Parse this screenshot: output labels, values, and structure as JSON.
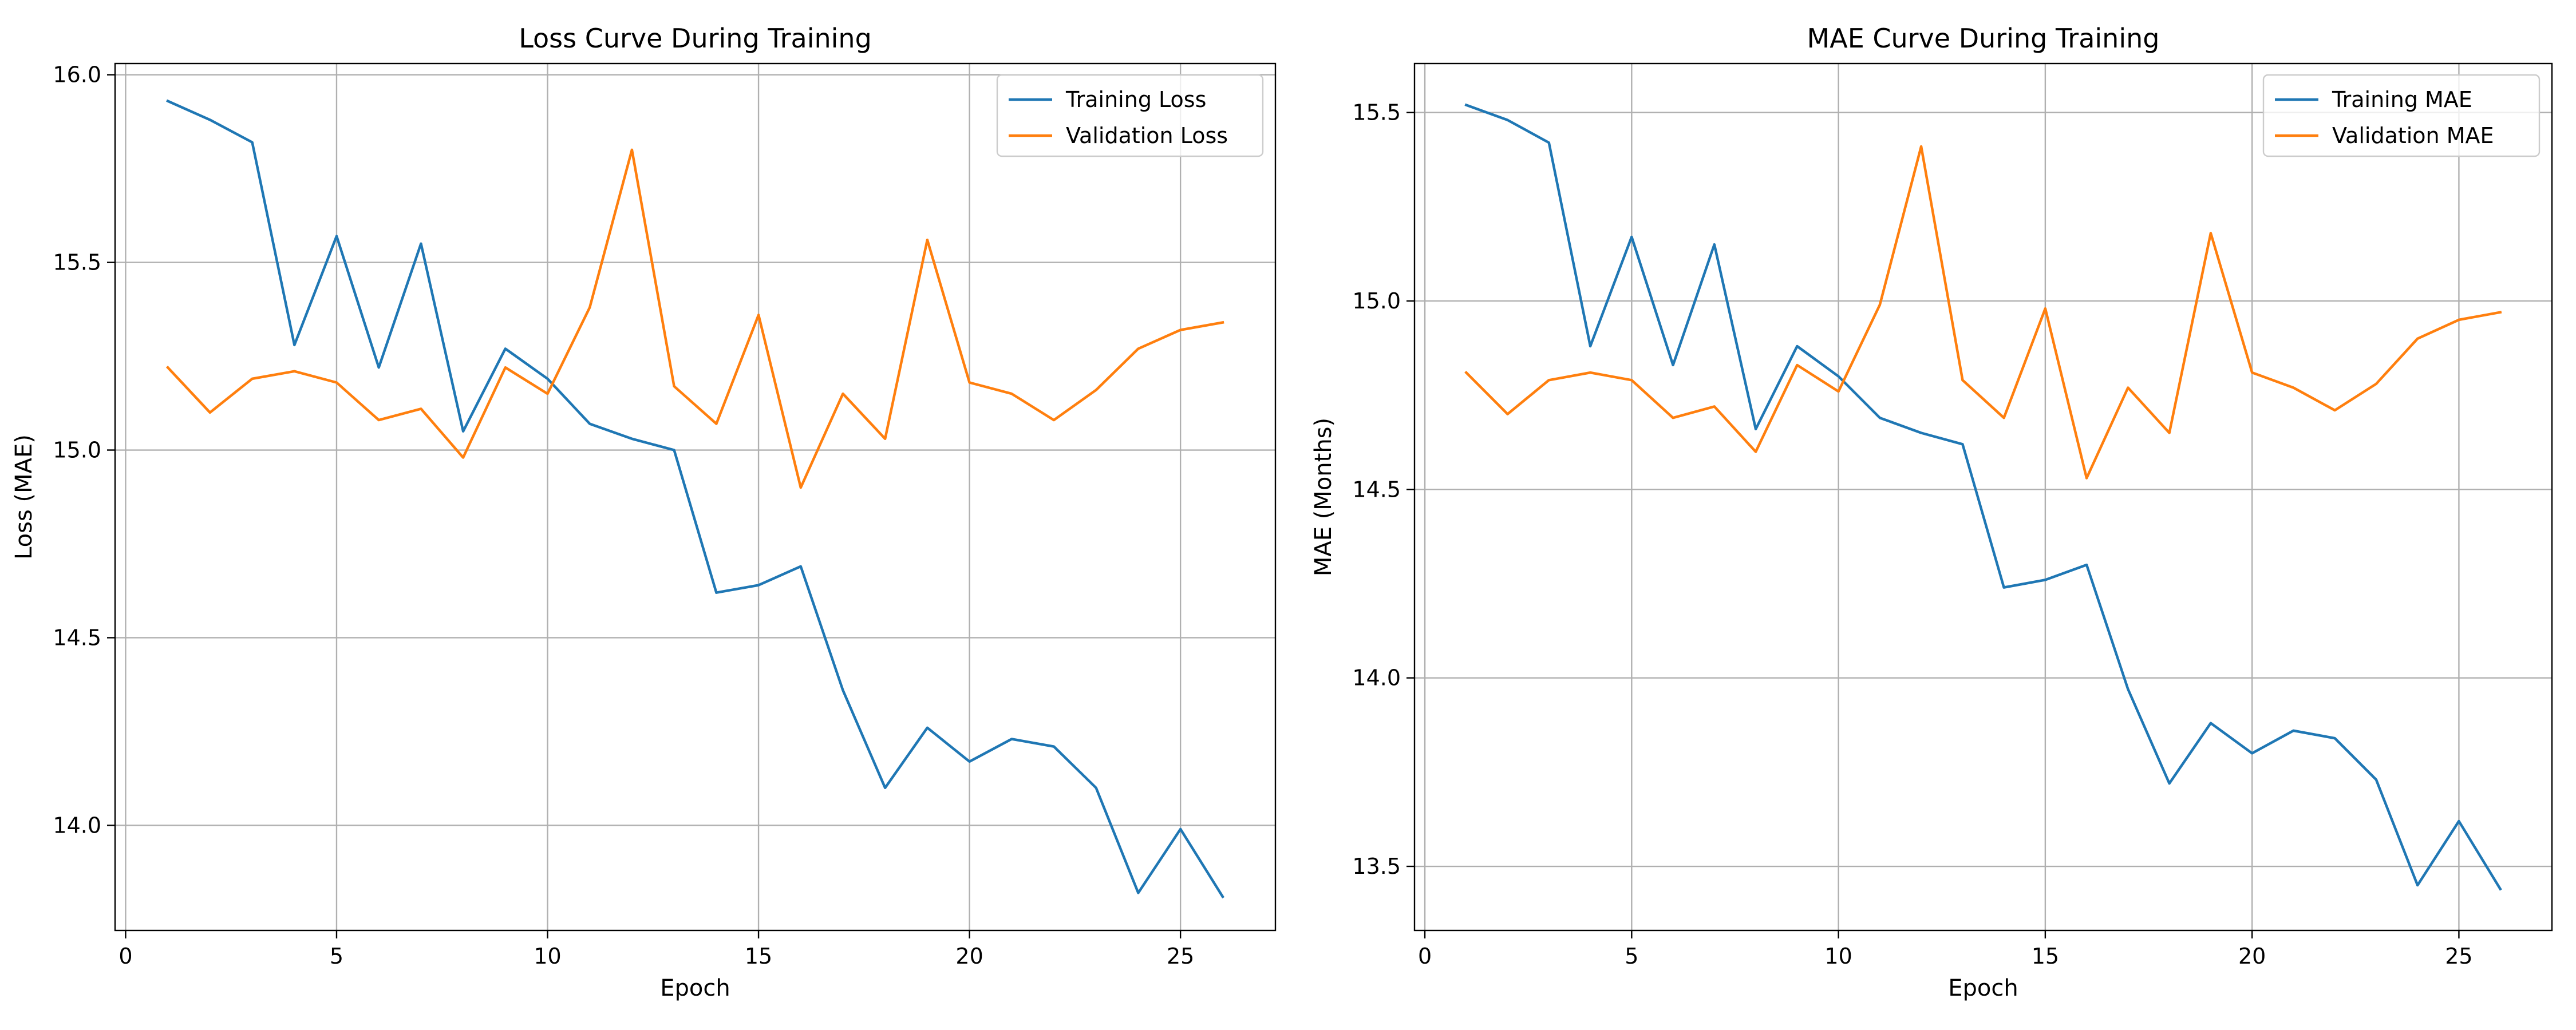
{
  "figure": {
    "background": "#ffffff"
  },
  "chart_data": [
    {
      "type": "line",
      "title": "Loss Curve During Training",
      "xlabel": "Epoch",
      "ylabel": "Loss (MAE)",
      "xlim": [
        -0.25,
        27.25
      ],
      "ylim": [
        13.72,
        16.03
      ],
      "xticks": [
        0,
        5,
        10,
        15,
        20,
        25
      ],
      "yticks": [
        14.0,
        14.5,
        15.0,
        15.5,
        16.0
      ],
      "grid": true,
      "legend_position": "top-right",
      "x": [
        1,
        2,
        3,
        4,
        5,
        6,
        7,
        8,
        9,
        10,
        11,
        12,
        13,
        14,
        15,
        16,
        17,
        18,
        19,
        20,
        21,
        22,
        23,
        24,
        25,
        26
      ],
      "series": [
        {
          "name": "Training Loss",
          "color": "#1f77b4",
          "values": [
            15.93,
            15.88,
            15.82,
            15.28,
            15.57,
            15.22,
            15.55,
            15.05,
            15.27,
            15.19,
            15.07,
            15.03,
            15.0,
            14.62,
            14.64,
            14.69,
            14.36,
            14.1,
            14.26,
            14.17,
            14.23,
            14.21,
            14.1,
            13.82,
            13.99,
            13.81
          ]
        },
        {
          "name": "Validation Loss",
          "color": "#ff7f0e",
          "values": [
            15.22,
            15.1,
            15.19,
            15.21,
            15.18,
            15.08,
            15.11,
            14.98,
            15.22,
            15.15,
            15.38,
            15.8,
            15.17,
            15.07,
            15.36,
            14.9,
            15.15,
            15.03,
            15.56,
            15.18,
            15.15,
            15.08,
            15.16,
            15.27,
            15.32,
            15.34
          ]
        }
      ]
    },
    {
      "type": "line",
      "title": "MAE Curve During Training",
      "xlabel": "Epoch",
      "ylabel": "MAE (Months)",
      "xlim": [
        -0.25,
        27.25
      ],
      "ylim": [
        13.33,
        15.63
      ],
      "xticks": [
        0,
        5,
        10,
        15,
        20,
        25
      ],
      "yticks": [
        13.5,
        14.0,
        14.5,
        15.0,
        15.5
      ],
      "grid": true,
      "legend_position": "top-right",
      "x": [
        1,
        2,
        3,
        4,
        5,
        6,
        7,
        8,
        9,
        10,
        11,
        12,
        13,
        14,
        15,
        16,
        17,
        18,
        19,
        20,
        21,
        22,
        23,
        24,
        25,
        26
      ],
      "series": [
        {
          "name": "Training MAE",
          "color": "#1f77b4",
          "values": [
            15.52,
            15.48,
            15.42,
            14.88,
            15.17,
            14.83,
            15.15,
            14.66,
            14.88,
            14.8,
            14.69,
            14.65,
            14.62,
            14.24,
            14.26,
            14.3,
            13.97,
            13.72,
            13.88,
            13.8,
            13.86,
            13.84,
            13.73,
            13.45,
            13.62,
            13.44
          ]
        },
        {
          "name": "Validation MAE",
          "color": "#ff7f0e",
          "values": [
            14.81,
            14.7,
            14.79,
            14.81,
            14.79,
            14.69,
            14.72,
            14.6,
            14.83,
            14.76,
            14.99,
            15.41,
            14.79,
            14.69,
            14.98,
            14.53,
            14.77,
            14.65,
            15.18,
            14.81,
            14.77,
            14.71,
            14.78,
            14.9,
            14.95,
            14.97
          ]
        }
      ]
    }
  ]
}
